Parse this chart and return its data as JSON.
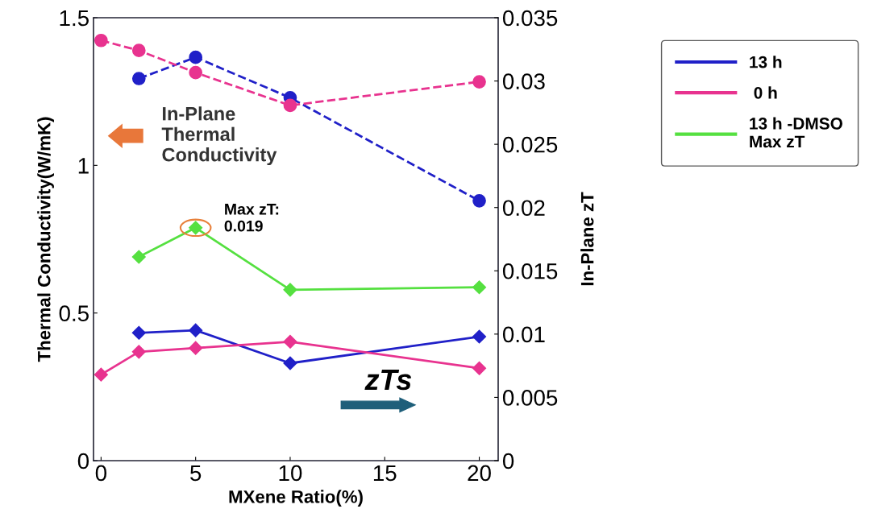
{
  "chart_data": {
    "type": "line",
    "xlabel": "MXene Ratio(%)",
    "ylabel": "Thermal Conductivity(W/mK)",
    "y2label": "In-Plane zT",
    "x": [
      0,
      2,
      5,
      10,
      20
    ],
    "series": [
      {
        "color": "#2020c8",
        "values": [
          null,
          1.294,
          1.366,
          1.229,
          0.88
        ],
        "marker": "circle",
        "line_style": "dashed"
      },
      {
        "color": "#e8338f",
        "values": [
          1.423,
          1.389,
          1.314,
          1.203,
          1.283
        ],
        "marker": "circle",
        "line_style": "dashed"
      },
      {
        "name": "13 h",
        "color": "#2020c8",
        "values": [
          null,
          0.0101,
          0.0103,
          0.0077,
          0.0098
        ],
        "axis": "y2",
        "marker": "diamond",
        "line_style": "solid"
      },
      {
        "name": " 0 h",
        "color": "#e8338f",
        "values": [
          0.0068,
          0.0086,
          0.0089,
          0.0094,
          0.0073
        ],
        "axis": "y2",
        "marker": "diamond",
        "line_style": "solid"
      },
      {
        "name": "13 h -DMSO\nMax zT",
        "color": "#55e040",
        "values": [
          null,
          0.0161,
          0.0184,
          0.0135,
          0.0137
        ],
        "axis": "y2",
        "marker": "diamond",
        "line_style": "solid"
      }
    ],
    "xlim": [
      -0.4,
      21
    ],
    "xticks": [
      0,
      5,
      10,
      15,
      20
    ],
    "ylim": [
      0,
      1.5
    ],
    "yticks": [
      0,
      0.5,
      1,
      1.5
    ],
    "y2lim": [
      0,
      0.035
    ],
    "y2ticks": [
      0,
      0.005,
      0.01,
      0.015,
      0.02,
      0.025,
      0.03,
      0.035
    ],
    "legend": "right",
    "grid": false,
    "annotations": [
      "In-Plane\nThermal\nConductivity",
      "Max zT:\n0.019",
      "zTs"
    ]
  }
}
